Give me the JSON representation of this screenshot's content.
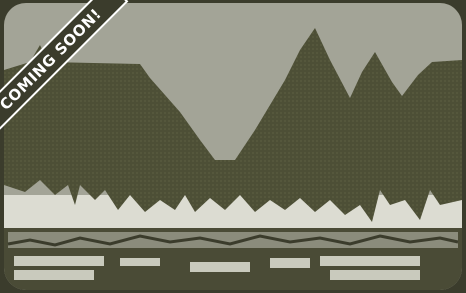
{
  "banner": {
    "text": "COMING SOON!"
  }
}
